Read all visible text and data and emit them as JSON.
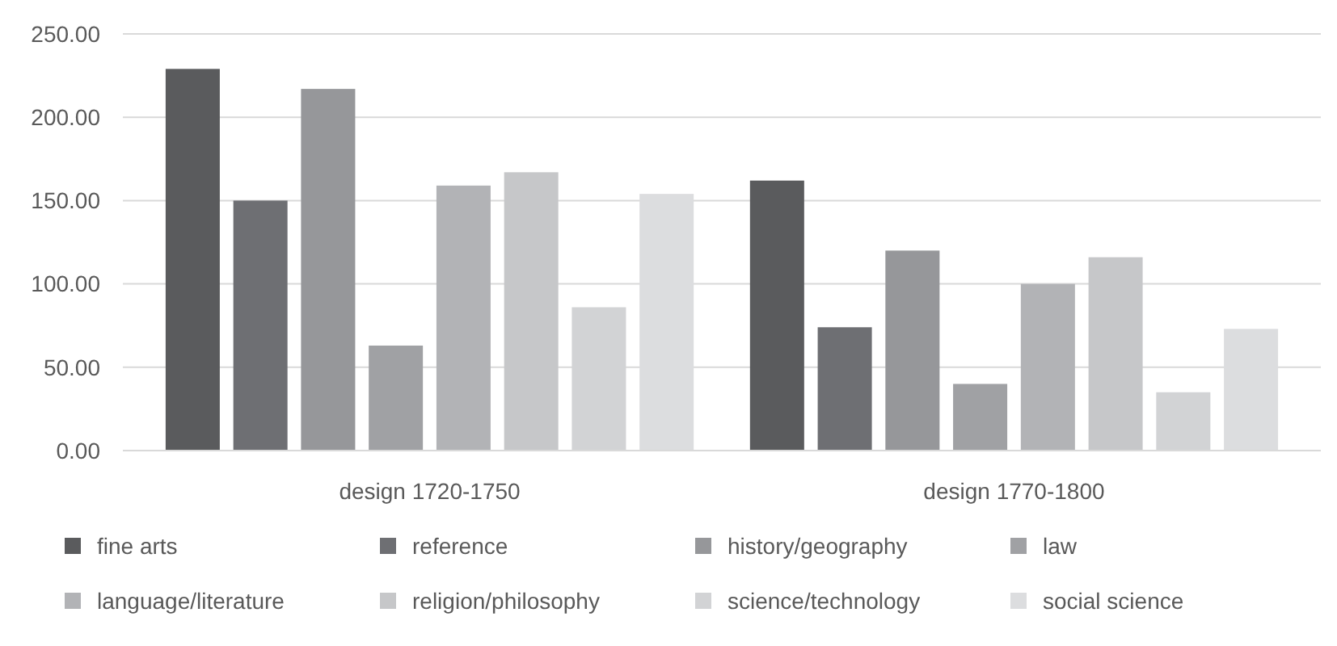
{
  "chart_data": {
    "type": "bar",
    "categories": [
      "design 1720-1750",
      "design 1770-1800"
    ],
    "series": [
      {
        "name": "fine arts",
        "color": "#5a5b5d",
        "values": [
          229,
          162
        ]
      },
      {
        "name": "reference",
        "color": "#6e6f73",
        "values": [
          150,
          74
        ]
      },
      {
        "name": "history/geography",
        "color": "#96979a",
        "values": [
          217,
          120
        ]
      },
      {
        "name": "law",
        "color": "#a0a1a4",
        "values": [
          63,
          40
        ]
      },
      {
        "name": "language/literature",
        "color": "#b2b3b6",
        "values": [
          159,
          100
        ]
      },
      {
        "name": "religion/philosophy",
        "color": "#c6c7c9",
        "values": [
          167,
          116
        ]
      },
      {
        "name": "science/technology",
        "color": "#d2d3d5",
        "values": [
          86,
          35
        ]
      },
      {
        "name": "social science",
        "color": "#dcdddf",
        "values": [
          154,
          73
        ]
      }
    ],
    "ylim": [
      0,
      250
    ],
    "yticks": [
      {
        "value": 0,
        "label": "0.00"
      },
      {
        "value": 50,
        "label": "50.00"
      },
      {
        "value": 100,
        "label": "100.00"
      },
      {
        "value": 150,
        "label": "150.00"
      },
      {
        "value": 200,
        "label": "200.00"
      },
      {
        "value": 250,
        "label": "250.00"
      }
    ],
    "grid": "y",
    "legend": "bottom"
  }
}
